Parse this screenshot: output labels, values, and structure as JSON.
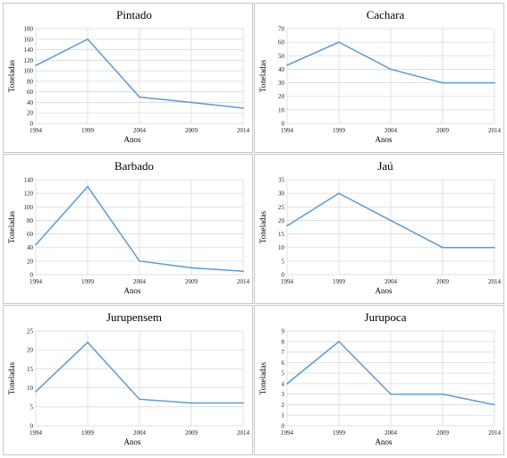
{
  "chart_data": [
    {
      "type": "line",
      "title": "Pintado",
      "xlabel": "Anos",
      "ylabel": "Toneladas",
      "x": [
        "1994",
        "1999",
        "2004",
        "2009",
        "2014"
      ],
      "values": [
        110,
        160,
        50,
        40,
        29
      ],
      "ylim": [
        0,
        180
      ],
      "yticks": [
        0,
        20,
        40,
        60,
        80,
        100,
        120,
        140,
        160,
        180
      ]
    },
    {
      "type": "line",
      "title": "Cachara",
      "xlabel": "Anos",
      "ylabel": "Toneladas",
      "x": [
        "1994",
        "1999",
        "2004",
        "2009",
        "2014"
      ],
      "values": [
        43,
        60,
        40,
        30,
        30
      ],
      "ylim": [
        0,
        70
      ],
      "yticks": [
        0,
        10,
        20,
        30,
        40,
        50,
        60,
        70
      ]
    },
    {
      "type": "line",
      "title": "Barbado",
      "xlabel": "Anos",
      "ylabel": "Toneladas",
      "x": [
        "1994",
        "1999",
        "2004",
        "2009",
        "2014"
      ],
      "values": [
        44,
        130,
        20,
        10,
        5
      ],
      "ylim": [
        0,
        140
      ],
      "yticks": [
        0,
        20,
        40,
        60,
        80,
        100,
        120,
        140
      ]
    },
    {
      "type": "line",
      "title": "Jaú",
      "xlabel": "Anos",
      "ylabel": "Toneladas",
      "x": [
        "1994",
        "1999",
        "2004",
        "2009",
        "2014"
      ],
      "values": [
        18,
        30,
        20,
        10,
        10
      ],
      "ylim": [
        0,
        35
      ],
      "yticks": [
        0,
        5,
        10,
        15,
        20,
        25,
        30,
        35
      ]
    },
    {
      "type": "line",
      "title": "Jurupensem",
      "xlabel": "Anos",
      "ylabel": "Toneladas",
      "x": [
        "1994",
        "1999",
        "2004",
        "2009",
        "2014"
      ],
      "values": [
        9,
        22,
        7,
        6,
        6
      ],
      "ylim": [
        0,
        25
      ],
      "yticks": [
        0,
        5,
        10,
        15,
        20,
        25
      ]
    },
    {
      "type": "line",
      "title": "Jurupoca",
      "xlabel": "Anos",
      "ylabel": "Toneladas",
      "x": [
        "1994",
        "1999",
        "2004",
        "2009",
        "2014"
      ],
      "values": [
        4,
        8,
        3,
        3,
        2
      ],
      "ylim": [
        0,
        9
      ],
      "yticks": [
        0,
        1,
        2,
        3,
        4,
        5,
        6,
        7,
        8,
        9
      ]
    }
  ],
  "colors": {
    "line": "#5b9bd5",
    "grid": "#d9d9d9",
    "border": "#c8c8c8"
  }
}
